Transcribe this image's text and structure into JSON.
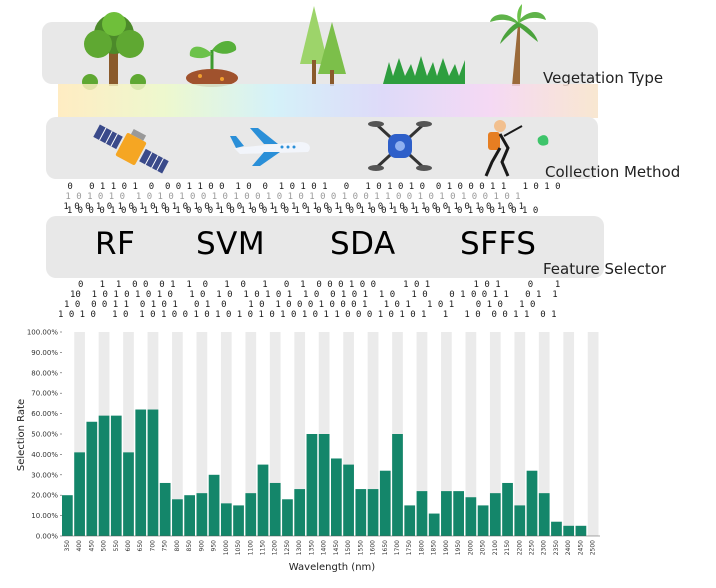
{
  "rows": {
    "vegetation": "Vegetation Type",
    "collection": "Collection Method",
    "feature": "Feature Selector"
  },
  "vegetation_icons": [
    "tree-icon",
    "seedling-icon",
    "conifer-trees-icon",
    "grass-icon",
    "palm-tree-icon"
  ],
  "collection_icons": [
    "satellite-icon",
    "airplane-icon",
    "drone-icon",
    "hiker-icon"
  ],
  "feature_selectors": [
    "RF",
    "SVM",
    "SDA",
    "SFFS"
  ],
  "binary_upper": [
    " 0   0 1 1 0 1  0  0 0 1 1 0 0  1 0  0  1 0 1 0 1   0   1 0 1 0 1 0  0 1 0 0 0 1 1   1 0 1 0",
    " 1 0 1 0 1 0  1 0 1 0 1 0 0 1 0 1 0 0 1 0 1 0 1 0 0 1 0 0 1 1 0 0 1 0 1 0 1 0 0 1 0 1",
    " 1 0 0 1 0 1 0 1 0 0 1 0 1 0 1 0 0 1 0 1 0 1 0 1 0 1 0 0 1 0 1 0 1 1 0 0 1 0 1 0 1 0 1",
    "  1 0 0 0 1 0 0 1 1 0 1 0 0 0 1 0 1 0 0 1 0 1 1 0 0 1 0 1 0 0 1 0 1 0 0 1 0 1 0 0 1 0 1 0"
  ],
  "binary_lower": [
    "0   1  1  0 0  0 1  1  0   1  0   1   0  1  0 0 0 1 0 0     1 0 1        1 0 1     0    1",
    "10  1 0 1 0 1 0 1 0   1 0  1 0  1 0 1 0 1  1 0  0 1 0 1  1 0   1 0    0 1 0 0 1 1   0 1  1",
    "1 0  0 0 1 1  0 1 0 1   0 1  0    1 0  1 0 0 0 1 0 0 0 1   1 0 1   1 0 1    0 1 0   1 0",
    "1 0 1 0   1 0  1 0 1 0 0 1 0 1 0 1 0 1 0 1 0 1 0 1 1 0 0 0 1 0 1 0 1   1   1 0  0 0 1 1  0 1"
  ],
  "chart_data": {
    "type": "bar",
    "xlabel": "Wavelength (nm)",
    "ylabel": "Selection Rate",
    "ylim": [
      0,
      100
    ],
    "yticks": [
      "0.00%",
      "10.00%",
      "20.00%",
      "30.00%",
      "40.00%",
      "50.00%",
      "60.00%",
      "70.00%",
      "80.00%",
      "90.00%",
      "100.00%"
    ],
    "categories": [
      "350",
      "400",
      "450",
      "500",
      "550",
      "600",
      "650",
      "700",
      "750",
      "800",
      "850",
      "900",
      "950",
      "1000",
      "1050",
      "1100",
      "1150",
      "1200",
      "1250",
      "1300",
      "1350",
      "1400",
      "1450",
      "1500",
      "1550",
      "1600",
      "1650",
      "1700",
      "1750",
      "1800",
      "1850",
      "1900",
      "1950",
      "2000",
      "2050",
      "2100",
      "2150",
      "2200",
      "2250",
      "2300",
      "2350",
      "2400",
      "2450",
      "2500"
    ],
    "values": [
      20,
      41,
      56,
      59,
      59,
      41,
      62,
      62,
      26,
      18,
      20,
      21,
      30,
      16,
      15,
      21,
      35,
      26,
      18,
      23,
      50,
      50,
      38,
      35,
      23,
      23,
      32,
      50,
      15,
      22,
      11,
      22,
      22,
      19,
      15,
      21,
      26,
      15,
      32,
      21,
      7,
      5,
      5,
      0
    ],
    "background_bars": true,
    "colors": {
      "bar": "#14866a",
      "bg_bar": "#ebebeb",
      "axis": "#555555"
    }
  }
}
